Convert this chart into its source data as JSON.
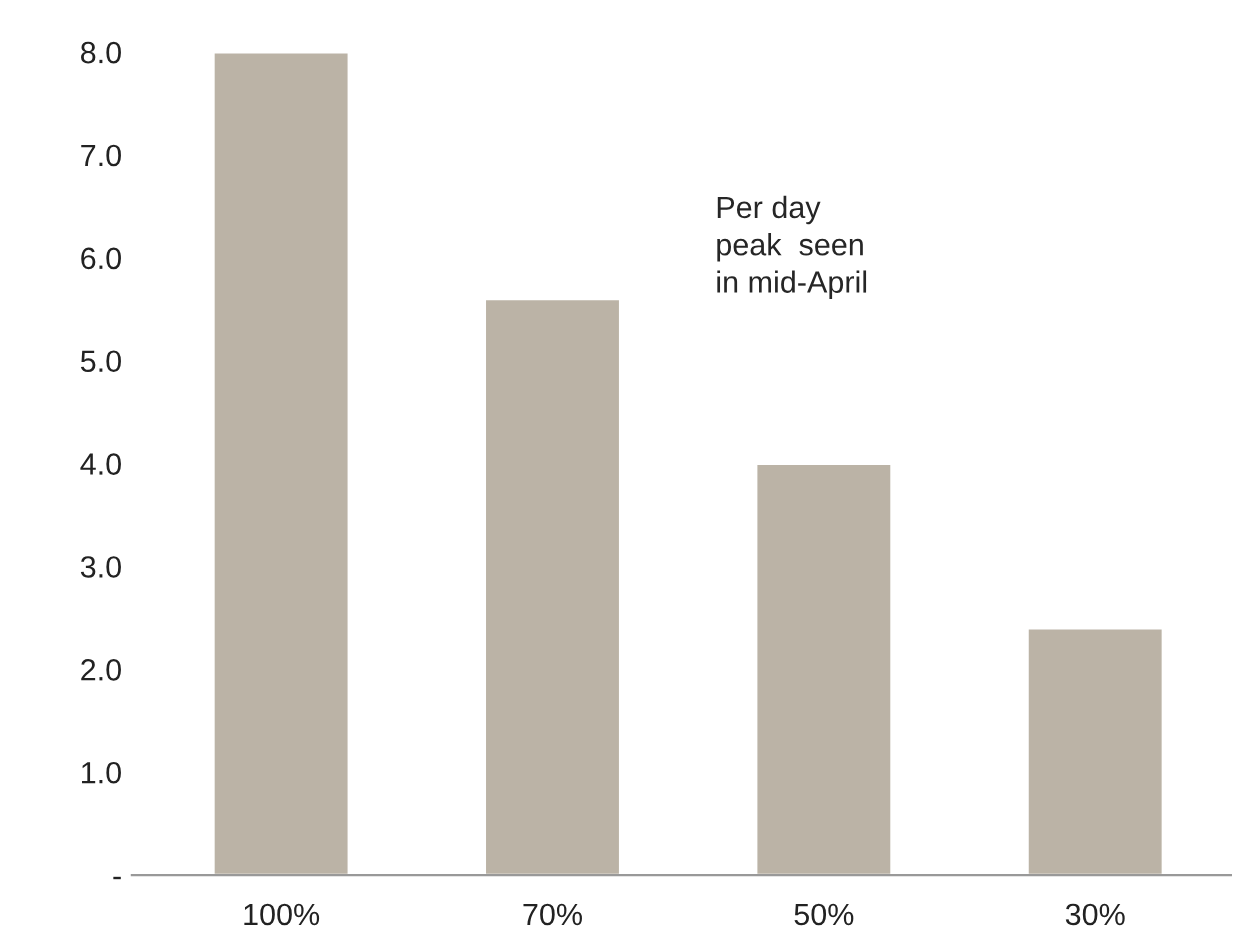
{
  "chart_data": {
    "type": "bar",
    "categories": [
      "100%",
      "70%",
      "50%",
      "30%"
    ],
    "values": [
      8.0,
      5.6,
      4.0,
      2.4
    ],
    "color": "#bbb3a6",
    "ylim": [
      0,
      8.0
    ],
    "yticks": [
      {
        "value": 0,
        "label": "-"
      },
      {
        "value": 1,
        "label": "1.0"
      },
      {
        "value": 2,
        "label": "2.0"
      },
      {
        "value": 3,
        "label": "3.0"
      },
      {
        "value": 4,
        "label": "4.0"
      },
      {
        "value": 5,
        "label": "5.0"
      },
      {
        "value": 6,
        "label": "6.0"
      },
      {
        "value": 7,
        "label": "7.0"
      },
      {
        "value": 8,
        "label": "8.0"
      }
    ],
    "annotations": [
      "Per day\npeak  seen\nin mid-April"
    ],
    "grid": false,
    "legend": false
  }
}
